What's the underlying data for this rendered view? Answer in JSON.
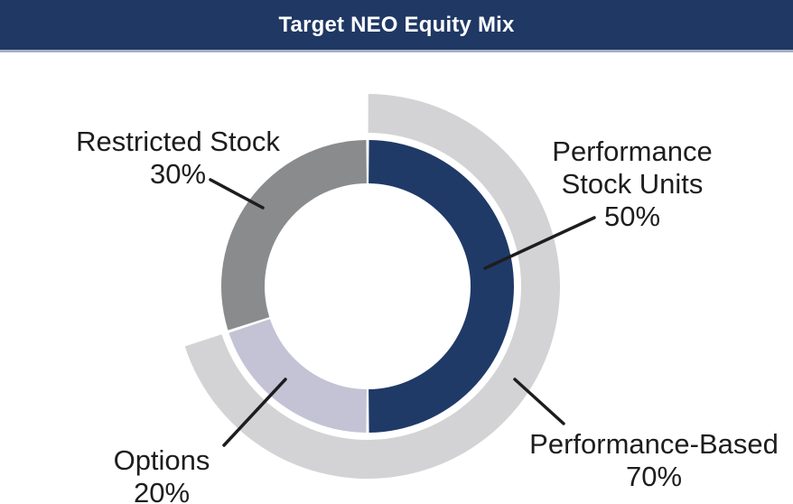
{
  "header": {
    "title": "Target NEO Equity Mix",
    "background_color": "#1F3864",
    "border_color": "#A3AFC3",
    "text_color": "#FFFFFF"
  },
  "chart_data": {
    "type": "pie",
    "subtype": "donut-with-outer-ring",
    "title": "Target NEO Equity Mix",
    "units": "percent",
    "direction": "clockwise",
    "start_angle_deg": 0,
    "segments": [
      {
        "label": "Performance Stock Units",
        "value": 50,
        "color": "#1F3A67"
      },
      {
        "label": "Options",
        "value": 20,
        "color": "#C3C3D5"
      },
      {
        "label": "Restricted Stock",
        "value": 30,
        "color": "#8A8B8D"
      }
    ],
    "outer_arc": {
      "label": "Performance-Based",
      "value": 70,
      "color": "#D3D3D5",
      "note": "outer ring spanning Performance Stock Units + Options"
    },
    "legend_position": "callout-labels",
    "grid": false
  },
  "callouts": {
    "restricted_stock": {
      "line1": "Restricted Stock",
      "line2": "30%"
    },
    "performance_stock_units": {
      "line1": "Performance",
      "line2": "Stock Units",
      "line3": "50%"
    },
    "options": {
      "line1": "Options",
      "line2": "20%"
    },
    "performance_based": {
      "line1": "Performance-Based",
      "line2": "70%"
    }
  }
}
